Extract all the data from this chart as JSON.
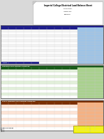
{
  "title": "Imperial College Electrical Load Balance Sheet",
  "subtitle_lines": [
    "Project No:",
    "Issued For:",
    "Revision:"
  ],
  "table1_header_color": "#1f1f8c",
  "table2_header_color": "#1a5c1a",
  "table3_header_color": "#7b3000",
  "header_text": "white",
  "table2_label": "DISTRIBUTION BOARD SUMMARY",
  "table3_label": "FINAL DISTRIBUTION BOARD SUMMARY",
  "teal_col": "#9dc3e6",
  "green_col": "#a9d18e",
  "orange_col": "#f4b183",
  "bright_teal": "#00b0f0",
  "bright_green": "#70ad47",
  "bright_orange": "#ed7d31",
  "row_stripe1": "#f2f2f2",
  "row_stripe2": "#ffffff",
  "row_green1": "#e2efda",
  "row_green2": "#ffffff",
  "row_orange1": "#fce4d6",
  "row_orange2": "#ffffff",
  "summary_box_color": "#ffff00",
  "bg_color": "#d9d9d9",
  "paper_color": "#ffffff",
  "border_color": "#555555",
  "grid_color": "#cccccc",
  "num_rows_t1": 14,
  "num_rows_t2": 10,
  "num_rows_t3": 8
}
